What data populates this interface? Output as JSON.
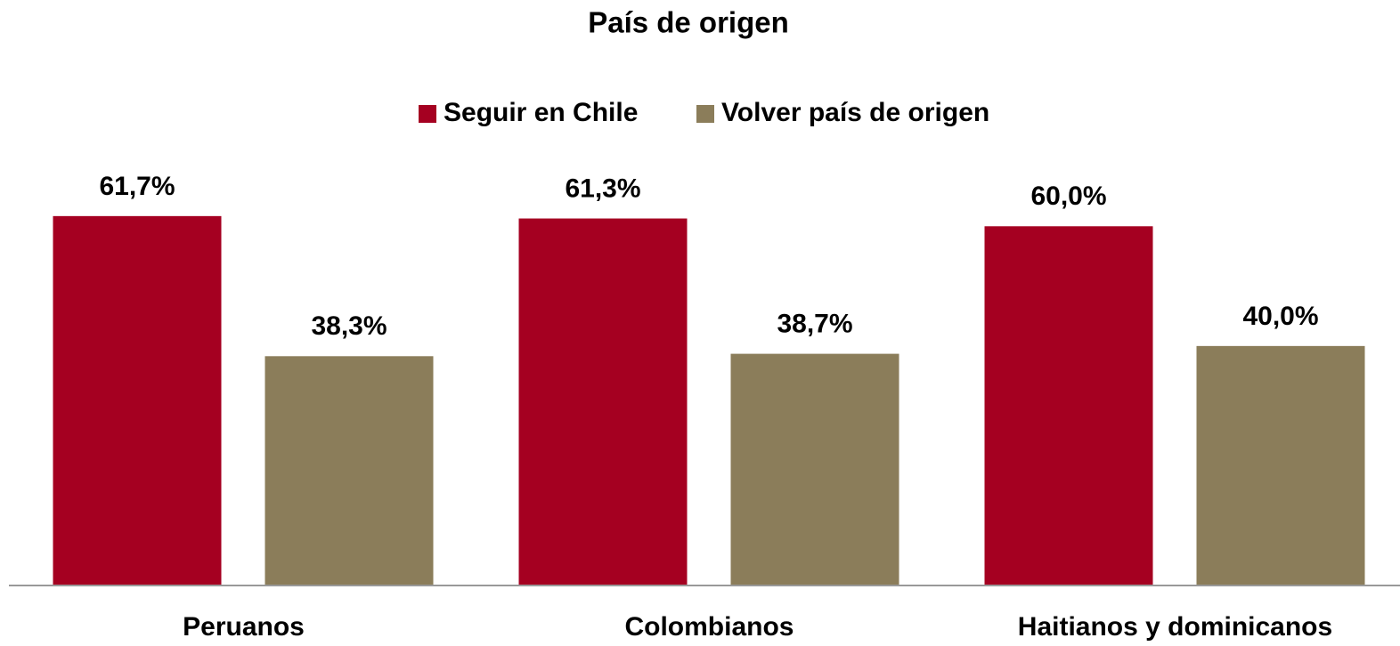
{
  "chart_data": {
    "type": "bar",
    "title": "País de origen",
    "categories": [
      "Peruanos",
      "Colombianos",
      "Haitianos y dominicanos"
    ],
    "series": [
      {
        "name": "Seguir en Chile",
        "color": "#a50021",
        "values": [
          61.7,
          61.3,
          60.0
        ],
        "value_labels": [
          "61,7%",
          "61,3%",
          "60,0%"
        ]
      },
      {
        "name": "Volver país de origen",
        "color": "#8b7d5a",
        "values": [
          38.3,
          38.7,
          40.0
        ],
        "value_labels": [
          "38,3%",
          "38,7%",
          "40,0%"
        ]
      }
    ],
    "ylim": [
      0,
      70
    ],
    "legend": "top"
  }
}
